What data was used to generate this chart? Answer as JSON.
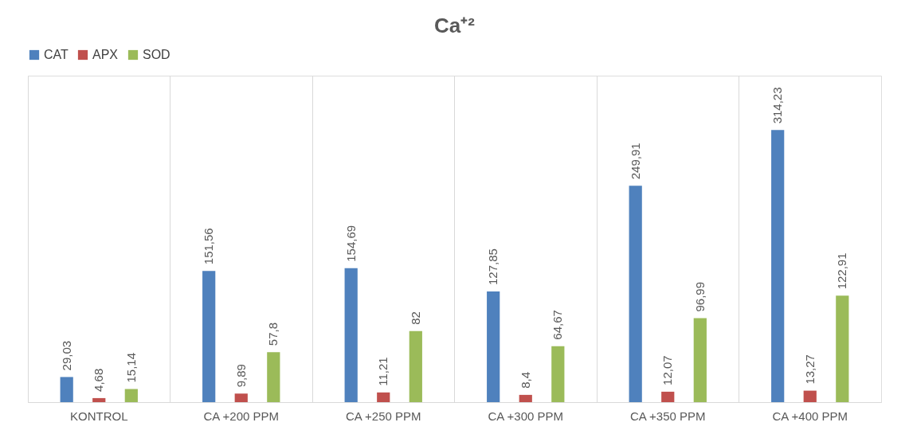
{
  "chart_data": {
    "type": "bar",
    "title": "Ca⁺²",
    "categories": [
      "KONTROL",
      "CA +200 PPM",
      "CA +250 PPM",
      "CA +300 PPM",
      "CA +350 PPM",
      "CA +400 PPM"
    ],
    "series": [
      {
        "name": "CAT",
        "color": "#4f81bd",
        "values": [
          29.03,
          151.56,
          154.69,
          127.85,
          249.91,
          314.23
        ],
        "value_labels": [
          "29,03",
          "151,56",
          "154,69",
          "127,85",
          "249,91",
          "314,23"
        ]
      },
      {
        "name": "APX",
        "color": "#c0504d",
        "values": [
          4.68,
          9.89,
          11.21,
          8.4,
          12.07,
          13.27
        ],
        "value_labels": [
          "4,68",
          "9,89",
          "11,21",
          "8,4",
          "12,07",
          "13,27"
        ]
      },
      {
        "name": "SOD",
        "color": "#9bbb59",
        "values": [
          15.14,
          57.8,
          82,
          64.67,
          96.99,
          122.91
        ],
        "value_labels": [
          "15,14",
          "57,8",
          "82",
          "64,67",
          "96,99",
          "122,91"
        ]
      }
    ],
    "legend": "top",
    "grid": "x"
  }
}
